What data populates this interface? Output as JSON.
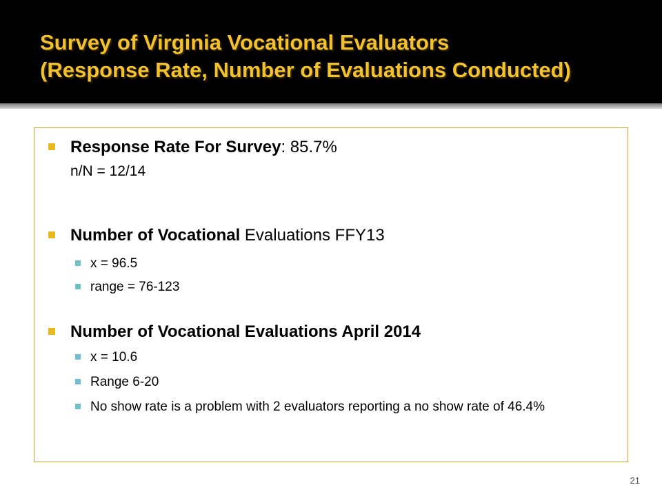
{
  "title": {
    "line1": "Survey of Virginia Vocational Evaluators",
    "line2": "(Response Rate, Number of Evaluations Conducted)"
  },
  "bullets": [
    {
      "bold": "Response Rate For Survey",
      "rest": ": 85.7%",
      "line2": "n/N = 12/14"
    },
    {
      "bold": "Number of Vocational",
      "rest": " Evaluations FFY13",
      "sub": [
        "x = 96.5",
        "range = 76-123"
      ]
    },
    {
      "bold": "Number of Vocational Evaluations April 2014",
      "rest": "",
      "sub": [
        "x = 10.6",
        "Range 6-20",
        "No show rate is a problem with 2 evaluators reporting a no show rate of 46.4%"
      ]
    }
  ],
  "page_number": "21",
  "colors": {
    "title": "#f2c12e",
    "title_bar": "#000000",
    "bullet_l1": "#e8b820",
    "bullet_l2": "#6fc0c8",
    "box_border": "#c9a227"
  }
}
